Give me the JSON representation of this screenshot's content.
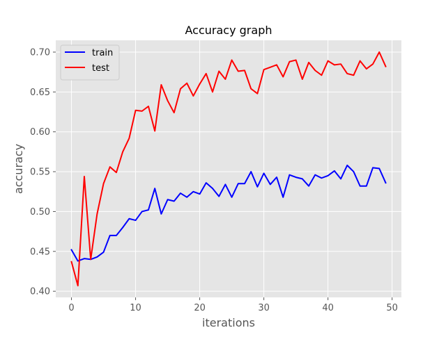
{
  "chart_data": {
    "type": "line",
    "title": "Accuracy graph",
    "xlabel": "iterations",
    "ylabel": "accuracy",
    "xlim": [
      -2.45,
      51.45
    ],
    "ylim": [
      0.3923,
      0.7148
    ],
    "x_ticks": [
      0,
      10,
      20,
      30,
      40,
      50
    ],
    "y_ticks": [
      0.4,
      0.45,
      0.5,
      0.55,
      0.6,
      0.65,
      0.7
    ],
    "grid": true,
    "legend_position": "top-left",
    "x": [
      0,
      1,
      2,
      3,
      4,
      5,
      6,
      7,
      8,
      9,
      10,
      11,
      12,
      13,
      14,
      15,
      16,
      17,
      18,
      19,
      20,
      21,
      22,
      23,
      24,
      25,
      26,
      27,
      28,
      29,
      30,
      31,
      32,
      33,
      34,
      35,
      36,
      37,
      38,
      39,
      40,
      41,
      42,
      43,
      44,
      45,
      46,
      47,
      48,
      49
    ],
    "series": [
      {
        "name": "train",
        "color": "#0000ff",
        "values": [
          0.452,
          0.438,
          0.441,
          0.44,
          0.443,
          0.449,
          0.47,
          0.47,
          0.48,
          0.491,
          0.489,
          0.5,
          0.502,
          0.529,
          0.497,
          0.515,
          0.513,
          0.523,
          0.518,
          0.525,
          0.522,
          0.536,
          0.529,
          0.519,
          0.534,
          0.518,
          0.535,
          0.535,
          0.55,
          0.531,
          0.548,
          0.534,
          0.543,
          0.518,
          0.546,
          0.543,
          0.541,
          0.532,
          0.546,
          0.542,
          0.545,
          0.551,
          0.541,
          0.558,
          0.55,
          0.532,
          0.532,
          0.555,
          0.554,
          0.536
        ]
      },
      {
        "name": "test",
        "color": "#ff0000",
        "values": [
          0.437,
          0.407,
          0.544,
          0.44,
          0.497,
          0.535,
          0.556,
          0.549,
          0.575,
          0.592,
          0.627,
          0.626,
          0.632,
          0.601,
          0.659,
          0.639,
          0.624,
          0.654,
          0.661,
          0.645,
          0.66,
          0.673,
          0.65,
          0.676,
          0.666,
          0.69,
          0.676,
          0.677,
          0.654,
          0.648,
          0.678,
          0.681,
          0.684,
          0.669,
          0.688,
          0.69,
          0.666,
          0.687,
          0.677,
          0.671,
          0.689,
          0.684,
          0.685,
          0.673,
          0.671,
          0.689,
          0.679,
          0.685,
          0.7,
          0.682
        ]
      }
    ]
  },
  "colors": {
    "plot_background": "#e5e5e5",
    "grid": "#ffffff",
    "text": "#555555"
  }
}
